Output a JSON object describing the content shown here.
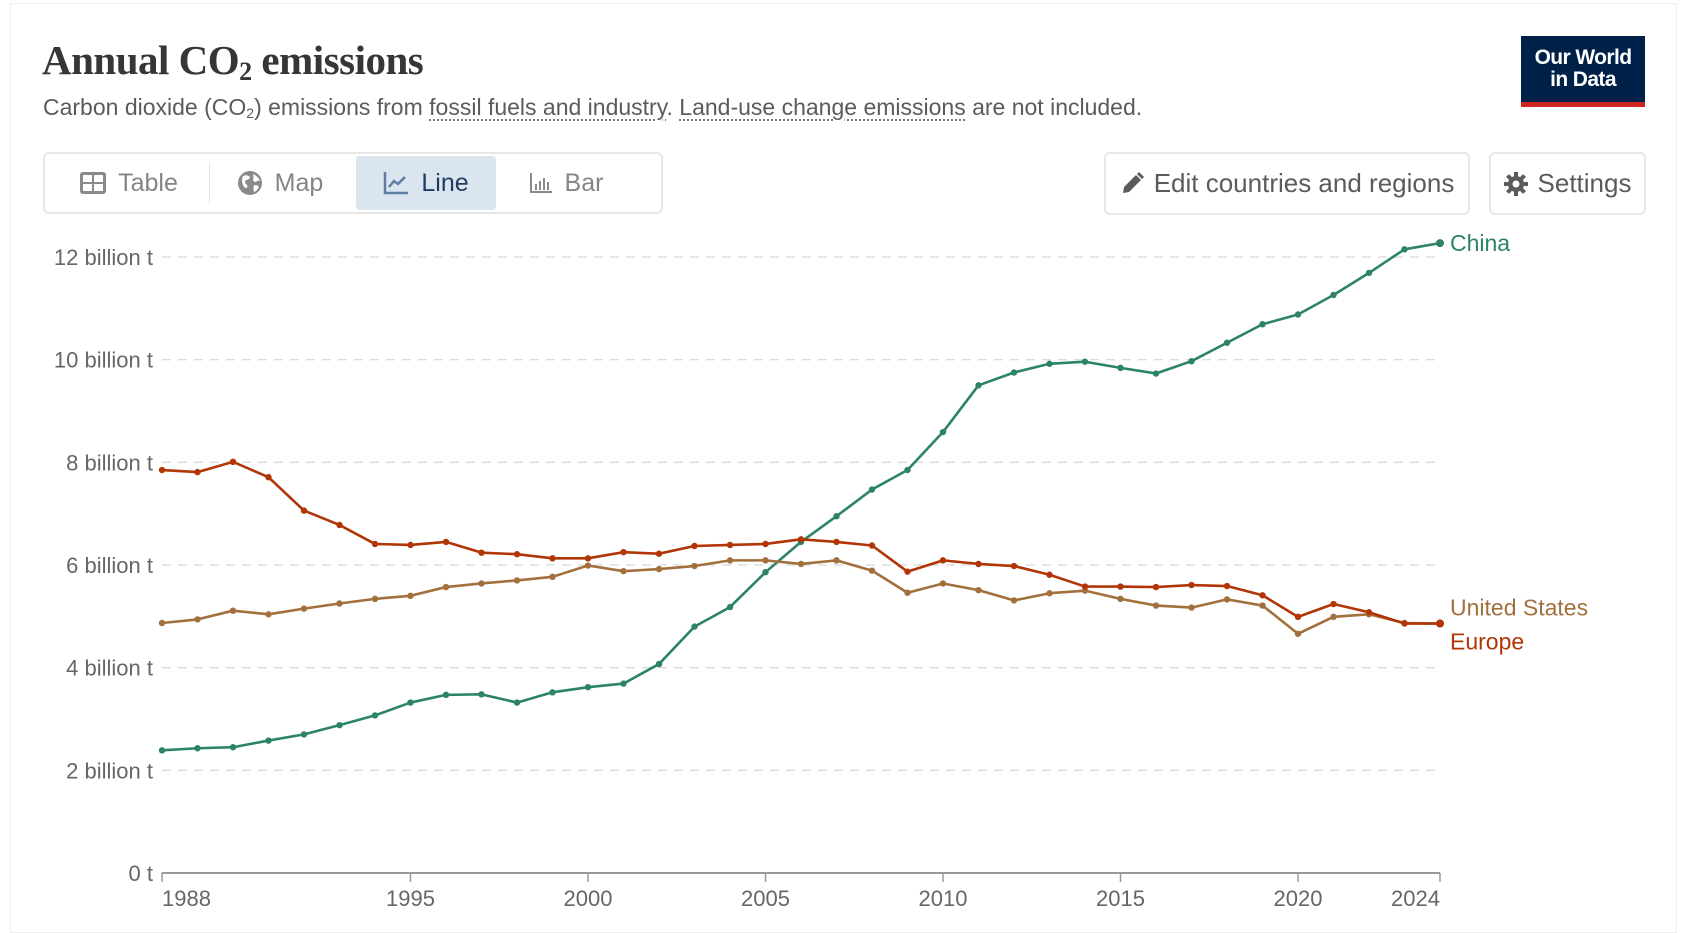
{
  "header": {
    "title_pre": "Annual CO",
    "title_sub": "2",
    "title_post": " emissions",
    "subtitle_a": "Carbon dioxide (CO",
    "subtitle_sub": "2",
    "subtitle_b": ") emissions from ",
    "subtitle_link1": "fossil fuels and industry",
    "subtitle_c": ". ",
    "subtitle_link2": "Land-use change emissions",
    "subtitle_d": " are not included.",
    "logo_line1": "Our World",
    "logo_line2": "in Data"
  },
  "tabs": [
    {
      "label": "Table",
      "icon": "table-icon",
      "active": false
    },
    {
      "label": "Map",
      "icon": "globe-icon",
      "active": false
    },
    {
      "label": "Line",
      "icon": "line-chart-icon",
      "active": true
    },
    {
      "label": "Bar",
      "icon": "bar-chart-icon",
      "active": false
    }
  ],
  "toolbar": {
    "edit_label": "Edit countries and regions",
    "settings_label": "Settings"
  },
  "colors": {
    "China": "#2c8465",
    "United States": "#a2703d",
    "Europe": "#b13507",
    "brand_navy": "#002147",
    "brand_red": "#ce261e",
    "active_tab_bg": "#dbe5f0"
  },
  "chart_data": {
    "type": "line",
    "title": "Annual CO₂ emissions",
    "xlabel": "",
    "ylabel": "",
    "x": [
      1988,
      1989,
      1990,
      1991,
      1992,
      1993,
      1994,
      1995,
      1996,
      1997,
      1998,
      1999,
      2000,
      2001,
      2002,
      2003,
      2004,
      2005,
      2006,
      2007,
      2008,
      2009,
      2010,
      2011,
      2012,
      2013,
      2014,
      2015,
      2016,
      2017,
      2018,
      2019,
      2020,
      2021,
      2022,
      2023,
      2024
    ],
    "xlim": [
      1988,
      2024
    ],
    "ylim": [
      0,
      12
    ],
    "y_unit": "billion t",
    "x_ticks": [
      "1988",
      "1995",
      "2000",
      "2005",
      "2010",
      "2015",
      "2020",
      "2024"
    ],
    "y_ticks": [
      {
        "value": 0,
        "label": "0 t"
      },
      {
        "value": 2,
        "label": "2 billion t"
      },
      {
        "value": 4,
        "label": "4 billion t"
      },
      {
        "value": 6,
        "label": "6 billion t"
      },
      {
        "value": 8,
        "label": "8 billion t"
      },
      {
        "value": 10,
        "label": "10 billion t"
      },
      {
        "value": 12,
        "label": "12 billion t"
      }
    ],
    "grid": true,
    "legend": "end-of-line labels (right)",
    "series": [
      {
        "name": "China",
        "values": [
          2.39,
          2.43,
          2.45,
          2.58,
          2.7,
          2.88,
          3.07,
          3.32,
          3.47,
          3.48,
          3.32,
          3.52,
          3.62,
          3.69,
          4.07,
          4.8,
          5.18,
          5.86,
          6.45,
          6.95,
          7.47,
          7.85,
          8.59,
          9.5,
          9.75,
          9.92,
          9.96,
          9.84,
          9.73,
          9.97,
          10.33,
          10.69,
          10.88,
          11.26,
          11.69,
          12.15,
          12.27
        ]
      },
      {
        "name": "United States",
        "values": [
          4.87,
          4.94,
          5.11,
          5.04,
          5.15,
          5.25,
          5.34,
          5.4,
          5.57,
          5.64,
          5.7,
          5.77,
          5.99,
          5.88,
          5.92,
          5.98,
          6.09,
          6.09,
          6.02,
          6.09,
          5.89,
          5.46,
          5.64,
          5.51,
          5.31,
          5.45,
          5.5,
          5.34,
          5.21,
          5.17,
          5.33,
          5.21,
          4.66,
          4.99,
          5.04,
          4.87,
          4.86
        ]
      },
      {
        "name": "Europe",
        "values": [
          7.85,
          7.81,
          8.01,
          7.71,
          7.06,
          6.78,
          6.41,
          6.39,
          6.45,
          6.24,
          6.21,
          6.13,
          6.13,
          6.25,
          6.22,
          6.37,
          6.39,
          6.41,
          6.5,
          6.45,
          6.38,
          5.87,
          6.09,
          6.02,
          5.98,
          5.81,
          5.58,
          5.58,
          5.57,
          5.61,
          5.59,
          5.41,
          4.99,
          5.24,
          5.08,
          4.86,
          4.86
        ]
      }
    ]
  }
}
